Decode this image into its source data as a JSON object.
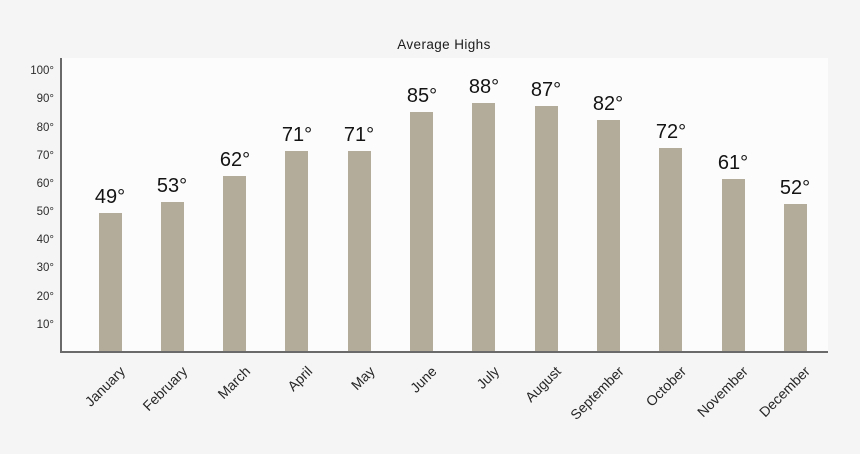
{
  "chart_data": {
    "type": "bar",
    "title": "Average Highs",
    "categories": [
      "January",
      "February",
      "March",
      "April",
      "May",
      "June",
      "July",
      "August",
      "September",
      "October",
      "November",
      "December"
    ],
    "values": [
      49,
      53,
      62,
      71,
      71,
      85,
      88,
      87,
      82,
      72,
      61,
      52
    ],
    "value_labels": [
      "49°",
      "53°",
      "62°",
      "71°",
      "71°",
      "85°",
      "88°",
      "87°",
      "82°",
      "72°",
      "61°",
      "52°"
    ],
    "xlabel": "",
    "ylabel": "",
    "y_ticks": [
      {
        "label": "100°",
        "value": 100
      },
      {
        "label": "90°",
        "value": 90
      },
      {
        "label": "80°",
        "value": 80
      },
      {
        "label": "70°",
        "value": 70
      },
      {
        "label": "60°",
        "value": 60
      },
      {
        "label": "50°",
        "value": 50
      },
      {
        "label": "40°",
        "value": 40
      },
      {
        "label": "30°",
        "value": 30
      },
      {
        "label": "20°",
        "value": 20
      },
      {
        "label": "10°",
        "value": 10
      }
    ],
    "ylim": [
      0,
      104
    ],
    "grid": false,
    "legend": "none",
    "colors": {
      "bar": "#b4ac9b",
      "axis": "#6a6a6a",
      "page_background": "#f5f5f5",
      "plot_background": "#fcfcfc",
      "value_text": "#141414",
      "tick_text": "#2d2d2d"
    }
  }
}
